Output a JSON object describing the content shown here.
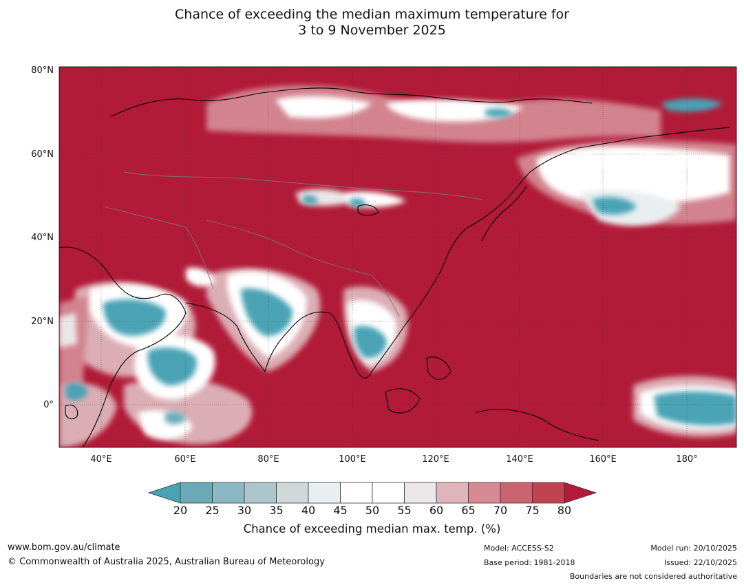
{
  "title": {
    "line1": "Chance of exceeding the median maximum temperature for",
    "line2": "3 to 9 November 2025"
  },
  "axes": {
    "lat_ticks": [
      "80°N",
      "60°N",
      "40°N",
      "20°N",
      "0°"
    ],
    "lon_ticks": [
      "40°E",
      "60°E",
      "80°E",
      "100°E",
      "120°E",
      "140°E",
      "160°E",
      "180°"
    ]
  },
  "map": {
    "region": "Asia, Indian Ocean and western Pacific",
    "lat_range": [
      -10,
      81
    ],
    "lon_range": [
      30,
      192
    ],
    "colorscale": {
      "ticks": [
        "20",
        "25",
        "30",
        "35",
        "40",
        "45",
        "50",
        "55",
        "60",
        "65",
        "70",
        "75",
        "80"
      ],
      "colors": [
        "#4aa3b5",
        "#6ba9b7",
        "#8bb8c2",
        "#adc6cb",
        "#d0d8d9",
        "#e9eef0",
        "#ffffff",
        "#ffffff",
        "#ebe6e7",
        "#deb5bb",
        "#d48993",
        "#c8636f",
        "#bf4351",
        "#b11b38"
      ],
      "label": "Chance of exceeding median max. temp. (%)"
    }
  },
  "footer": {
    "url": "www.bom.gov.au/climate",
    "copyright": "© Commonwealth of Australia 2025, Australian Bureau of Meteorology",
    "model": "Model: ACCESS-S2",
    "base_period": "Base period: 1981-2018",
    "model_run": "Model run: 20/10/2025",
    "issued": "Issued: 22/10/2025",
    "disclaimer": "Boundaries are not considered authoritative"
  }
}
